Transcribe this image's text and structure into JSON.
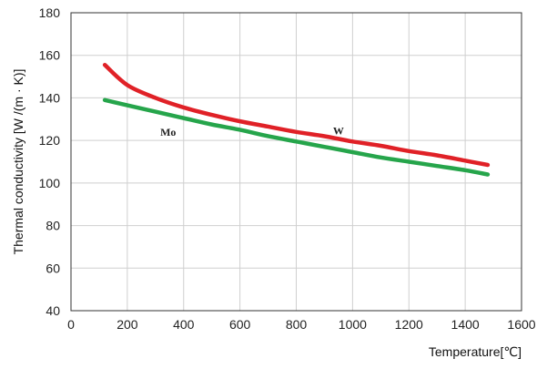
{
  "chart_data": {
    "type": "line",
    "title": "",
    "xlabel": "Temperature[℃]",
    "ylabel": "Thermal conductivity [W /(m · K)]",
    "xlim": [
      0,
      1600
    ],
    "ylim": [
      40,
      180
    ],
    "xticks": [
      "0",
      "200",
      "400",
      "600",
      "800",
      "1000",
      "1200",
      "1400",
      "1600"
    ],
    "yticks": [
      "40",
      "60",
      "80",
      "100",
      "120",
      "140",
      "160",
      "180"
    ],
    "grid": true,
    "legend": "none",
    "series": [
      {
        "name": "W",
        "color": "#e02127",
        "x": [
          120,
          200,
          300,
          400,
          500,
          600,
          700,
          800,
          900,
          1000,
          1100,
          1200,
          1300,
          1400,
          1480
        ],
        "y": [
          155.5,
          146,
          140,
          135.5,
          132,
          129,
          126.5,
          124,
          122,
          119.5,
          117.5,
          115,
          113,
          110.5,
          108.5
        ]
      },
      {
        "name": "Mo",
        "color": "#26a54b",
        "x": [
          120,
          200,
          300,
          400,
          500,
          600,
          700,
          800,
          900,
          1000,
          1100,
          1200,
          1300,
          1400,
          1480
        ],
        "y": [
          139,
          136.5,
          133.5,
          130.5,
          127.5,
          125,
          122,
          119.5,
          117,
          114.5,
          112,
          110,
          108,
          106,
          104
        ]
      }
    ],
    "series_labels": [
      {
        "text": "Mo",
        "x": 345,
        "y": 124
      },
      {
        "text": "W",
        "x": 950,
        "y": 124.5
      }
    ]
  }
}
